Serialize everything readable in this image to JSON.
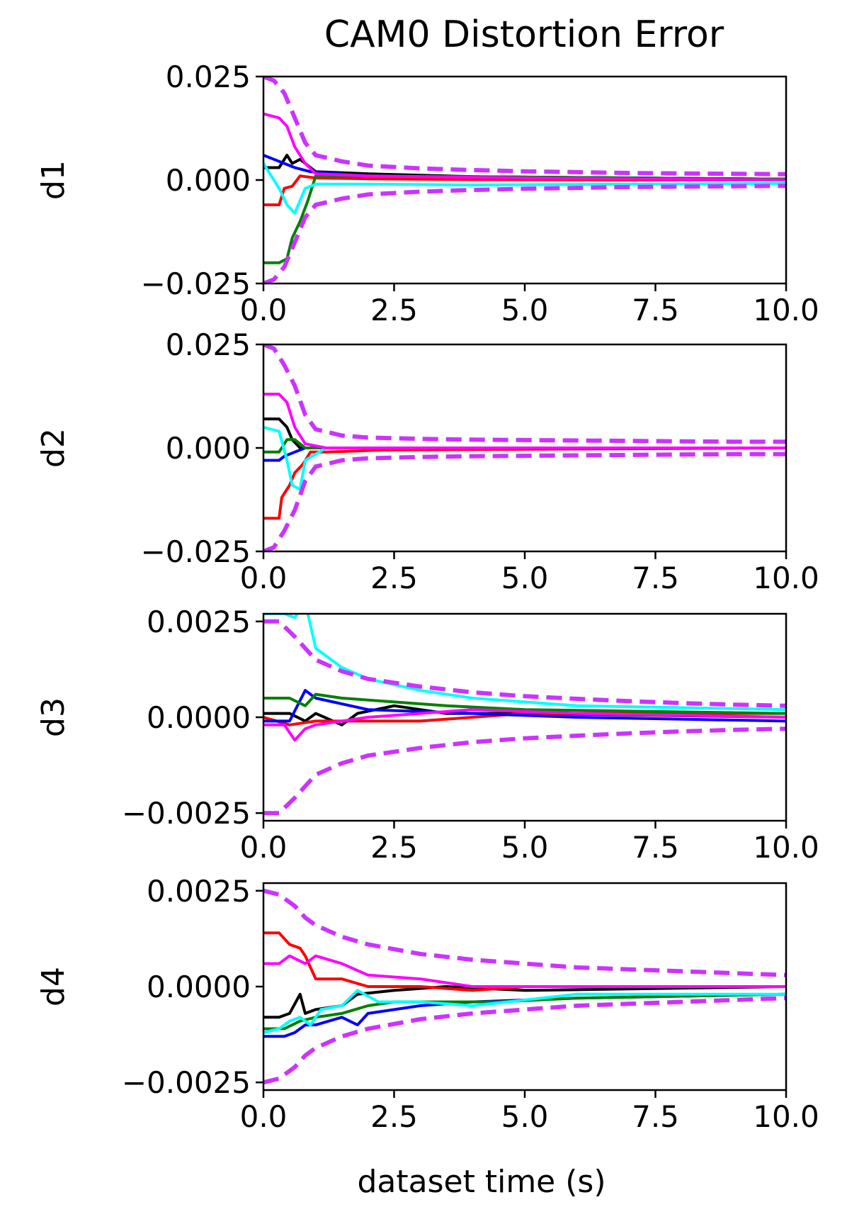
{
  "figure": {
    "title": "CAM0 Distortion Error",
    "xlabel": "dataset time (s)"
  },
  "colors": {
    "black": "#000000",
    "red": "#ff0000",
    "blue": "#0000ff",
    "green": "#008000",
    "cyan": "#00ffff",
    "magenta": "#ff00ff",
    "bound_magenta": "#cc33ff"
  },
  "chart_data": [
    {
      "type": "line",
      "ylabel": "d1",
      "xlim": [
        0,
        10
      ],
      "ylim": [
        -0.025,
        0.025
      ],
      "xticks": [
        "0.0",
        "2.5",
        "5.0",
        "7.5",
        "10.0"
      ],
      "yticks": [
        {
          "value": 0.025,
          "label": "0.025"
        },
        {
          "value": 0.0,
          "label": "0.000"
        },
        {
          "value": -0.025,
          "label": "−0.025"
        }
      ],
      "series": [
        {
          "color": "#000000",
          "x": [
            0,
            0.3,
            0.45,
            0.55,
            0.7,
            1.0,
            2.0,
            4.0,
            10.0
          ],
          "y": [
            0.003,
            0.003,
            0.006,
            0.004,
            0.005,
            0.002,
            0.0015,
            0.0008,
            0.0002
          ]
        },
        {
          "color": "#ff0000",
          "x": [
            0,
            0.3,
            0.4,
            0.55,
            0.7,
            1.0,
            2.0,
            4.0,
            10.0
          ],
          "y": [
            -0.006,
            -0.006,
            -0.002,
            -0.0015,
            0.001,
            0.0005,
            0.0003,
            0.0001,
            0.0
          ]
        },
        {
          "color": "#0000ff",
          "x": [
            0,
            0.2,
            0.4,
            0.6,
            0.9,
            2.0,
            10.0
          ],
          "y": [
            0.006,
            0.005,
            0.004,
            0.003,
            0.002,
            0.001,
            0.0002
          ]
        },
        {
          "color": "#008000",
          "x": [
            0,
            0.3,
            0.45,
            0.55,
            0.7,
            0.85,
            1.0,
            2.0,
            10.0
          ],
          "y": [
            -0.02,
            -0.02,
            -0.019,
            -0.014,
            -0.01,
            -0.005,
            0.001,
            0.001,
            0.0002
          ]
        },
        {
          "color": "#00ffff",
          "x": [
            0,
            0.3,
            0.45,
            0.6,
            0.8,
            1.0,
            2.0,
            4.0,
            10.0
          ],
          "y": [
            0.004,
            -0.002,
            -0.006,
            -0.008,
            -0.002,
            -0.001,
            -0.001,
            -0.0012,
            -0.0008
          ]
        },
        {
          "color": "#ff00ff",
          "x": [
            0,
            0.3,
            0.45,
            0.6,
            0.8,
            1.0,
            2.0,
            5.0,
            10.0
          ],
          "y": [
            0.016,
            0.015,
            0.013,
            0.008,
            0.004,
            0.0015,
            0.001,
            0.0005,
            0.0
          ]
        }
      ],
      "bounds": {
        "x": [
          0,
          0.2,
          0.4,
          0.6,
          0.8,
          1.0,
          1.5,
          2,
          3,
          4,
          5,
          6,
          7,
          8,
          9,
          10
        ],
        "y": [
          0.025,
          0.024,
          0.021,
          0.015,
          0.009,
          0.006,
          0.0045,
          0.0035,
          0.0028,
          0.0024,
          0.0021,
          0.0019,
          0.0017,
          0.0016,
          0.0015,
          0.0014
        ]
      }
    },
    {
      "type": "line",
      "ylabel": "d2",
      "xlim": [
        0,
        10
      ],
      "ylim": [
        -0.025,
        0.025
      ],
      "xticks": [
        "0.0",
        "2.5",
        "5.0",
        "7.5",
        "10.0"
      ],
      "yticks": [
        {
          "value": 0.025,
          "label": "0.025"
        },
        {
          "value": 0.0,
          "label": "0.000"
        },
        {
          "value": -0.025,
          "label": "−0.025"
        }
      ],
      "series": [
        {
          "color": "#000000",
          "x": [
            0,
            0.3,
            0.45,
            0.55,
            0.7,
            0.9,
            1.2,
            10.0
          ],
          "y": [
            0.007,
            0.007,
            0.005,
            0.002,
            0.0,
            0.0,
            0.0,
            0.0
          ]
        },
        {
          "color": "#ff0000",
          "x": [
            0,
            0.3,
            0.35,
            0.5,
            0.6,
            0.75,
            0.9,
            1.2,
            2.3,
            10.0
          ],
          "y": [
            -0.017,
            -0.017,
            -0.012,
            -0.009,
            -0.006,
            -0.004,
            -0.001,
            -0.001,
            -0.0005,
            0.0
          ]
        },
        {
          "color": "#0000ff",
          "x": [
            0,
            0.3,
            0.4,
            0.6,
            0.8,
            1.2,
            10.0
          ],
          "y": [
            -0.003,
            -0.003,
            -0.002,
            -0.001,
            0.0,
            0.0,
            0.0
          ]
        },
        {
          "color": "#008000",
          "x": [
            0,
            0.3,
            0.45,
            0.6,
            0.8,
            1.2,
            10.0
          ],
          "y": [
            -0.001,
            -0.001,
            0.002,
            0.002,
            0.0,
            0.0,
            0.0
          ]
        },
        {
          "color": "#00ffff",
          "x": [
            0,
            0.3,
            0.45,
            0.55,
            0.7,
            0.8,
            1.2,
            10.0
          ],
          "y": [
            0.005,
            0.004,
            -0.003,
            -0.009,
            -0.01,
            -0.003,
            0.0,
            0.0
          ]
        },
        {
          "color": "#ff00ff",
          "x": [
            0,
            0.3,
            0.45,
            0.6,
            0.8,
            1.2,
            10.0
          ],
          "y": [
            0.013,
            0.013,
            0.011,
            0.005,
            0.001,
            0.0,
            0.0
          ]
        }
      ],
      "bounds": {
        "x": [
          0,
          0.2,
          0.4,
          0.6,
          0.8,
          1.0,
          1.5,
          2,
          3,
          4,
          5,
          6,
          7,
          8,
          9,
          10
        ],
        "y": [
          0.025,
          0.024,
          0.02,
          0.015,
          0.008,
          0.0045,
          0.003,
          0.0025,
          0.0022,
          0.002,
          0.0019,
          0.0018,
          0.0017,
          0.0016,
          0.0015,
          0.0015
        ]
      }
    },
    {
      "type": "line",
      "ylabel": "d3",
      "xlim": [
        0,
        10
      ],
      "ylim": [
        -0.0027,
        0.0027
      ],
      "xticks": [
        "0.0",
        "2.5",
        "5.0",
        "7.5",
        "10.0"
      ],
      "yticks": [
        {
          "value": 0.0025,
          "label": "0.0025"
        },
        {
          "value": 0.0,
          "label": "0.0000"
        },
        {
          "value": -0.0025,
          "label": "−0.0025"
        }
      ],
      "series": [
        {
          "color": "#000000",
          "x": [
            0,
            0.5,
            0.8,
            1.0,
            1.5,
            1.8,
            2.5,
            3.5,
            5.0,
            10.0
          ],
          "y": [
            0.0001,
            0.0001,
            -0.0001,
            0.0001,
            -0.0002,
            0.0001,
            0.0003,
            0.0001,
            0.0001,
            0.0
          ]
        },
        {
          "color": "#ff0000",
          "x": [
            0,
            0.5,
            1.0,
            2.0,
            3.0,
            4.0,
            5.0,
            10.0
          ],
          "y": [
            0.0,
            -0.0002,
            -0.0001,
            -0.0001,
            -0.0001,
            0.0,
            0.0001,
            0.0001
          ]
        },
        {
          "color": "#0000ff",
          "x": [
            0,
            0.5,
            0.8,
            1.0,
            2.0,
            4.0,
            6.0,
            10.0
          ],
          "y": [
            -0.0001,
            -0.0001,
            0.0007,
            0.0005,
            0.0002,
            0.0001,
            0.0,
            -0.0001
          ]
        },
        {
          "color": "#008000",
          "x": [
            0,
            0.5,
            0.8,
            1.0,
            1.5,
            2.5,
            3.5,
            5.0,
            10.0
          ],
          "y": [
            0.0005,
            0.0005,
            0.0003,
            0.0006,
            0.0005,
            0.0004,
            0.0003,
            0.0002,
            0.0001
          ]
        },
        {
          "color": "#00ffff",
          "x": [
            0,
            0.4,
            0.6,
            0.8,
            1.0,
            1.5,
            2.0,
            3.0,
            4.0,
            6.0,
            10.0
          ],
          "y": [
            0.0027,
            0.0027,
            0.0026,
            0.003,
            0.0018,
            0.0013,
            0.001,
            0.0007,
            0.0005,
            0.0003,
            0.0002
          ]
        },
        {
          "color": "#ff00ff",
          "x": [
            0,
            0.4,
            0.6,
            0.8,
            1.0,
            2.0,
            3.0,
            4.0,
            6.0,
            10.0
          ],
          "y": [
            -0.0002,
            -0.0002,
            -0.0006,
            -0.0003,
            -0.0002,
            0.0,
            0.0001,
            0.0002,
            0.0001,
            0.0
          ]
        }
      ],
      "bounds": {
        "x": [
          0,
          0.3,
          0.6,
          0.8,
          1.0,
          1.5,
          2,
          3,
          4,
          5,
          6,
          7,
          8,
          9,
          10
        ],
        "y": [
          0.0025,
          0.0025,
          0.0021,
          0.0018,
          0.0015,
          0.0012,
          0.001,
          0.0008,
          0.00065,
          0.00055,
          0.00048,
          0.00042,
          0.00037,
          0.00033,
          0.0003
        ]
      }
    },
    {
      "type": "line",
      "ylabel": "d4",
      "xlim": [
        0,
        10
      ],
      "ylim": [
        -0.0027,
        0.0027
      ],
      "xticks": [
        "0.0",
        "2.5",
        "5.0",
        "7.5",
        "10.0"
      ],
      "yticks": [
        {
          "value": 0.0025,
          "label": "0.0025"
        },
        {
          "value": 0.0,
          "label": "0.0000"
        },
        {
          "value": -0.0025,
          "label": "−0.0025"
        }
      ],
      "series": [
        {
          "color": "#000000",
          "x": [
            0,
            0.3,
            0.5,
            0.7,
            0.8,
            1.0,
            1.5,
            1.8,
            2.5,
            3.5,
            5.0,
            10.0
          ],
          "y": [
            -0.0008,
            -0.0008,
            -0.0007,
            -0.0002,
            -0.0007,
            -0.0006,
            -0.0005,
            -0.0002,
            -0.0001,
            0.0,
            -0.0001,
            0.0
          ]
        },
        {
          "color": "#ff0000",
          "x": [
            0,
            0.3,
            0.5,
            0.7,
            0.8,
            1.0,
            1.5,
            2.0,
            3.0,
            4.0,
            5.0,
            10.0
          ],
          "y": [
            0.0014,
            0.0014,
            0.0011,
            0.001,
            0.0008,
            0.0002,
            0.0002,
            0.0,
            0.0,
            -0.0001,
            0.0,
            0.0
          ]
        },
        {
          "color": "#0000ff",
          "x": [
            0,
            0.4,
            0.6,
            0.8,
            1.0,
            1.5,
            1.8,
            2.0,
            3.0,
            4.0,
            6.0,
            10.0
          ],
          "y": [
            -0.0013,
            -0.0013,
            -0.0012,
            -0.001,
            -0.001,
            -0.0008,
            -0.001,
            -0.0007,
            -0.0005,
            -0.0004,
            -0.0003,
            -0.0002
          ]
        },
        {
          "color": "#008000",
          "x": [
            0,
            0.4,
            0.7,
            1.0,
            1.5,
            2.0,
            2.5,
            3.5,
            4.5,
            6.0,
            10.0
          ],
          "y": [
            -0.0011,
            -0.0011,
            -0.0009,
            -0.0008,
            -0.0007,
            -0.0005,
            -0.0004,
            -0.0004,
            -0.0004,
            -0.0003,
            -0.0002
          ]
        },
        {
          "color": "#00ffff",
          "x": [
            0,
            0.3,
            0.5,
            0.7,
            0.9,
            1.1,
            1.5,
            1.8,
            2.2,
            3.0,
            4.0,
            6.0,
            10.0
          ],
          "y": [
            -0.0012,
            -0.0011,
            -0.0009,
            -0.0008,
            -0.001,
            -0.0006,
            -0.0005,
            -0.0001,
            -0.0004,
            -0.0004,
            -0.0005,
            -0.0002,
            -0.0002
          ]
        },
        {
          "color": "#ff00ff",
          "x": [
            0,
            0.3,
            0.5,
            0.8,
            1.0,
            1.5,
            2.0,
            3.0,
            4.0,
            5.0,
            10.0
          ],
          "y": [
            0.0006,
            0.0006,
            0.0008,
            0.0006,
            0.0008,
            0.0006,
            0.0003,
            0.0002,
            0.0,
            0.0,
            0.0
          ]
        }
      ],
      "bounds": {
        "x": [
          0,
          0.3,
          0.6,
          0.8,
          1.0,
          1.5,
          2,
          3,
          4,
          5,
          6,
          7,
          8,
          9,
          10
        ],
        "y": [
          0.0025,
          0.0024,
          0.0021,
          0.0018,
          0.0016,
          0.0013,
          0.0011,
          0.00085,
          0.0007,
          0.0006,
          0.0005,
          0.00045,
          0.0004,
          0.00035,
          0.0003
        ]
      }
    }
  ]
}
